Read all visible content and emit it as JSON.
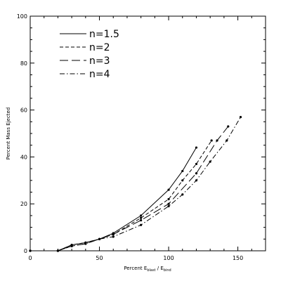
{
  "chart_data": {
    "type": "line",
    "title": "",
    "xlabel": {
      "main": "Percent E",
      "sub1": "blast",
      "mid": " / E",
      "sub2": "bind"
    },
    "ylabel": "Percent Mass Ejected",
    "xlim": [
      0,
      170
    ],
    "ylim": [
      0,
      100
    ],
    "xticks": [
      0,
      50,
      100,
      150
    ],
    "yticks": [
      0,
      20,
      40,
      60,
      80,
      100
    ],
    "grid": false,
    "legend_position": "top-left",
    "series": [
      {
        "name": "n=1.5",
        "dash": "solid",
        "x": [
          0,
          20,
          30,
          40,
          50,
          60,
          80,
          100,
          110,
          120
        ],
        "y": [
          0,
          0,
          2.5,
          3.5,
          5,
          7.5,
          15,
          26,
          34,
          44
        ]
      },
      {
        "name": "n=2",
        "dash": "dashed",
        "x": [
          0,
          20,
          30,
          40,
          50,
          60,
          80,
          100,
          110,
          120,
          131
        ],
        "y": [
          0,
          0,
          2.5,
          3.5,
          5,
          7,
          14,
          22,
          30,
          37,
          47
        ]
      },
      {
        "name": "n=3",
        "dash": "longdash",
        "x": [
          0,
          20,
          30,
          40,
          50,
          60,
          80,
          100,
          120,
          135,
          143
        ],
        "y": [
          0,
          0,
          2,
          3,
          5,
          7,
          13,
          20,
          33,
          47,
          53
        ]
      },
      {
        "name": "n=4",
        "dash": "dashdot",
        "x": [
          0,
          20,
          30,
          40,
          50,
          60,
          80,
          100,
          110,
          120,
          130,
          142,
          152
        ],
        "y": [
          0,
          0,
          2,
          3,
          5,
          6,
          11,
          19,
          24,
          30,
          38,
          47,
          57
        ]
      }
    ]
  }
}
